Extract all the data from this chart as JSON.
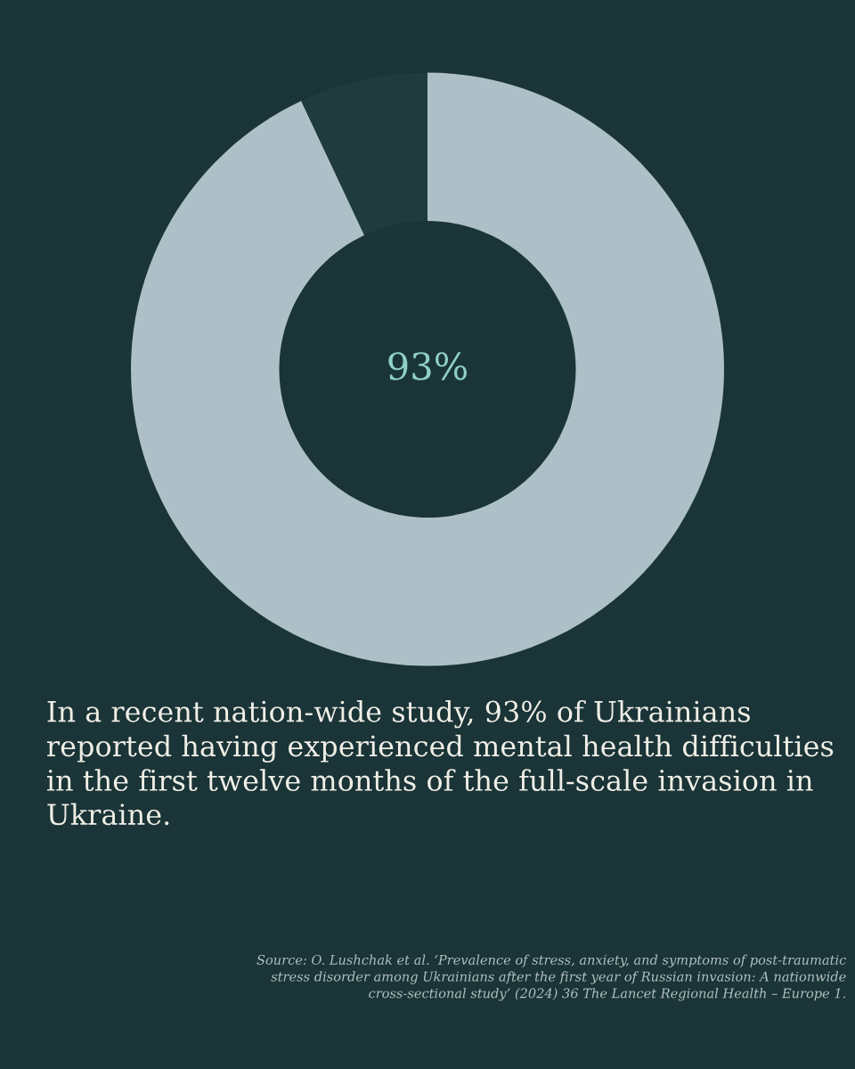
{
  "chart_data": {
    "type": "donut",
    "categories": [
      null,
      null
    ],
    "values": [
      93,
      7
    ],
    "colors": [
      "#adc0c7",
      "#1f3b3e"
    ],
    "value_labels": [
      "93%",
      null
    ],
    "annotations": [
      "In a recent nation-wide study, 93% of Ukrainians reported having experienced mental health difficulties in the first twelve months of the full-scale invasion in Ukraine.",
      "Source: O. Lushchak et al. ‘Prevalence of stress, anxiety, and symptoms of post-traumatic stress disorder among Ukrainians after the first year of Russian invasion: A nationwide cross-sectional study’ (2024) 36 The Lancet Regional Health – Europe 1."
    ]
  }
}
